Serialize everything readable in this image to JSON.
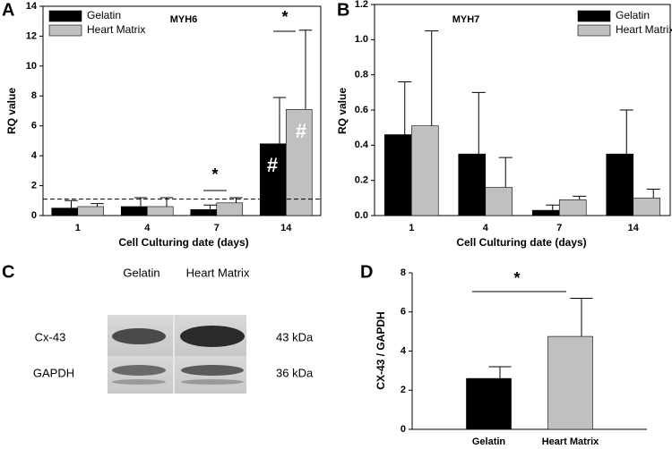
{
  "chart_data": [
    {
      "type": "bar",
      "panel": "A",
      "title": "MYH6",
      "x_label": "Cell Culturing date (days)",
      "y_label": "RQ value",
      "categories": [
        "1",
        "4",
        "7",
        "14"
      ],
      "series": [
        {
          "name": "Gelatin",
          "color": "#000000",
          "values": [
            0.5,
            0.6,
            0.4,
            4.8
          ],
          "errors": [
            0.5,
            0.6,
            0.3,
            3.1
          ]
        },
        {
          "name": "Heart Matrix",
          "color": "#c0c0c0",
          "values": [
            0.6,
            0.6,
            0.85,
            7.1
          ],
          "errors": [
            0.2,
            0.6,
            0.35,
            5.3
          ]
        }
      ],
      "ylim": [
        0,
        14
      ],
      "yticks": [
        0,
        2,
        4,
        6,
        8,
        10,
        12,
        14
      ],
      "reference_line": 1.1,
      "annotations": [
        "*",
        "*",
        "#",
        "#"
      ],
      "legend": "upper left"
    },
    {
      "type": "bar",
      "panel": "B",
      "title": "MYH7",
      "x_label": "Cell Culturing date (days)",
      "y_label": "RQ value",
      "categories": [
        "1",
        "4",
        "7",
        "14"
      ],
      "series": [
        {
          "name": "Gelatin",
          "color": "#000000",
          "values": [
            0.46,
            0.35,
            0.03,
            0.35
          ],
          "errors": [
            0.3,
            0.35,
            0.03,
            0.25
          ]
        },
        {
          "name": "Heart Matrix",
          "color": "#c0c0c0",
          "values": [
            0.51,
            0.16,
            0.09,
            0.1
          ],
          "errors": [
            0.54,
            0.17,
            0.02,
            0.05
          ]
        }
      ],
      "ylim": [
        0,
        1.2
      ],
      "yticks": [
        {
          "value": 0,
          "label": "0.0"
        },
        0.2,
        0.4,
        0.6,
        0.8,
        {
          "value": 1,
          "label": "1.0"
        },
        1.2
      ],
      "legend": "upper right"
    },
    {
      "type": "bar",
      "panel": "D",
      "y_label": "CX-43 / GAPDH",
      "categories": [
        "Gelatin",
        "Heart Matrix"
      ],
      "values": [
        2.6,
        4.75
      ],
      "errors": [
        0.6,
        1.95
      ],
      "colors": [
        "#000000",
        "#c0c0c0"
      ],
      "ylim": [
        0,
        8
      ],
      "yticks": [
        0,
        2,
        4,
        6,
        8
      ],
      "annotations": [
        "*"
      ]
    }
  ],
  "blot": {
    "panel": "C",
    "columns": [
      "Gelatin",
      "Heart Matrix"
    ],
    "rows": [
      "Cx-43",
      "GAPDH"
    ],
    "sizes": [
      "43 kDa",
      "36 kDa"
    ]
  }
}
